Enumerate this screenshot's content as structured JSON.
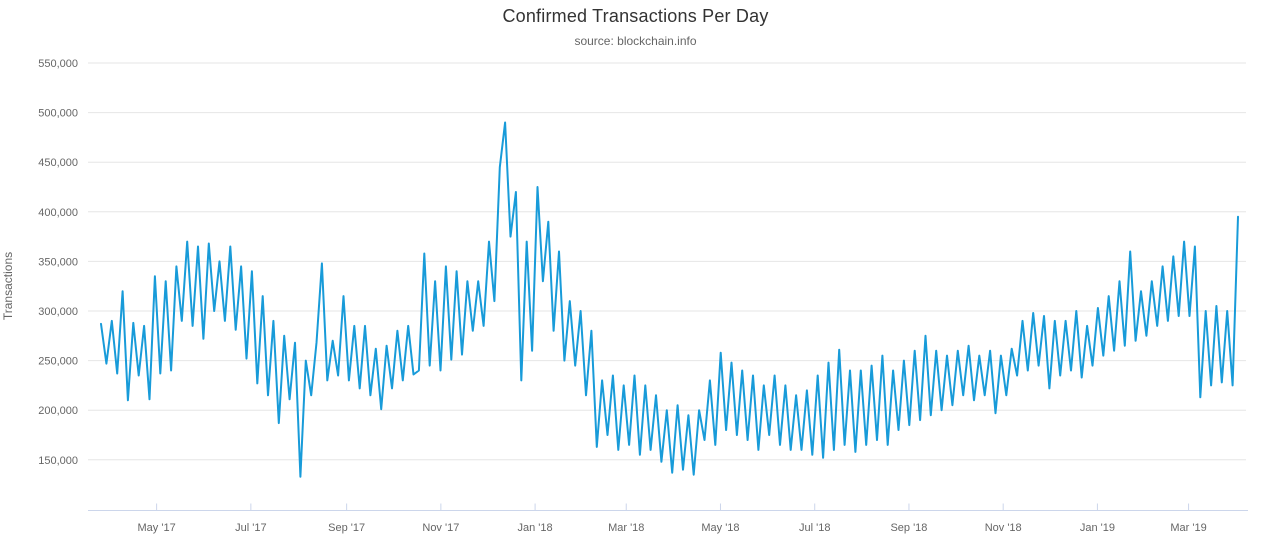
{
  "chart_data": {
    "type": "line",
    "title": "Confirmed Transactions Per Day",
    "subtitle": "source: blockchain.info",
    "ylabel": "Transactions",
    "xlabel": "",
    "legend": "none",
    "grid": "horizontal-only",
    "line_color": "#189bd9",
    "grid_color": "#e6e6e6",
    "axis_color": "#ccd6eb",
    "label_color": "#666666",
    "title_color": "#333333",
    "subtitle_color": "#666666",
    "ylim": [
      100000,
      570000
    ],
    "yticks": [
      150000,
      200000,
      250000,
      300000,
      350000,
      400000,
      450000,
      500000,
      550000
    ],
    "x_start_date": "2017-03-26",
    "x_total_days": 736,
    "xticks": [
      {
        "label": "May '17",
        "day": 36
      },
      {
        "label": "Jul '17",
        "day": 97
      },
      {
        "label": "Sep '17",
        "day": 159
      },
      {
        "label": "Nov '17",
        "day": 220
      },
      {
        "label": "Jan '18",
        "day": 281
      },
      {
        "label": "Mar '18",
        "day": 340
      },
      {
        "label": "May '18",
        "day": 401
      },
      {
        "label": "Jul '18",
        "day": 462
      },
      {
        "label": "Sep '18",
        "day": 523
      },
      {
        "label": "Nov '18",
        "day": 584
      },
      {
        "label": "Jan '19",
        "day": 645
      },
      {
        "label": "Mar '19",
        "day": 704
      }
    ],
    "sample_interval_days": 3.49,
    "values": [
      287000,
      247000,
      290000,
      237000,
      320000,
      210000,
      288000,
      235000,
      285000,
      211000,
      335000,
      237000,
      330000,
      240000,
      345000,
      290000,
      370000,
      285000,
      365000,
      272000,
      368000,
      300000,
      350000,
      290000,
      365000,
      281000,
      345000,
      252000,
      340000,
      227000,
      315000,
      215000,
      290000,
      187000,
      275000,
      211000,
      268000,
      133000,
      250000,
      215000,
      268000,
      348000,
      230000,
      270000,
      235000,
      315000,
      230000,
      285000,
      222000,
      285000,
      215000,
      262000,
      201000,
      265000,
      222000,
      280000,
      230000,
      285000,
      236000,
      240000,
      358000,
      245000,
      330000,
      240000,
      345000,
      251000,
      340000,
      256000,
      330000,
      280000,
      330000,
      285000,
      370000,
      310000,
      445000,
      490000,
      375000,
      420000,
      230000,
      370000,
      260000,
      425000,
      330000,
      390000,
      280000,
      360000,
      250000,
      310000,
      245000,
      300000,
      215000,
      280000,
      163000,
      230000,
      175000,
      235000,
      160000,
      225000,
      165000,
      235000,
      155000,
      225000,
      160000,
      215000,
      148000,
      200000,
      137000,
      205000,
      140000,
      195000,
      135000,
      200000,
      170000,
      230000,
      165000,
      258000,
      180000,
      248000,
      175000,
      240000,
      170000,
      235000,
      160000,
      225000,
      175000,
      235000,
      165000,
      225000,
      160000,
      215000,
      160000,
      220000,
      155000,
      235000,
      152000,
      248000,
      160000,
      261000,
      165000,
      240000,
      158000,
      240000,
      165000,
      245000,
      170000,
      255000,
      165000,
      240000,
      180000,
      250000,
      185000,
      260000,
      190000,
      275000,
      195000,
      260000,
      200000,
      255000,
      205000,
      260000,
      215000,
      265000,
      210000,
      255000,
      215000,
      260000,
      197000,
      255000,
      215000,
      262000,
      235000,
      290000,
      240000,
      298000,
      245000,
      295000,
      222000,
      290000,
      235000,
      290000,
      240000,
      300000,
      233000,
      285000,
      245000,
      303000,
      255000,
      315000,
      260000,
      330000,
      265000,
      360000,
      270000,
      320000,
      275000,
      330000,
      285000,
      345000,
      290000,
      355000,
      295000,
      370000,
      295000,
      365000,
      213000,
      300000,
      225000,
      305000,
      228000,
      300000,
      225000,
      395000
    ]
  }
}
